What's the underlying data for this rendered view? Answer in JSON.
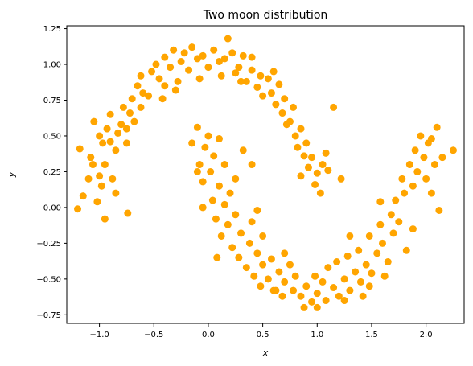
{
  "chart_data": {
    "type": "scatter",
    "title": "Two moon distribution",
    "xlabel": "x",
    "ylabel": "y",
    "xlim": [
      -1.3,
      2.35
    ],
    "ylim": [
      -0.81,
      1.27
    ],
    "xticks": [
      -1.0,
      -0.5,
      0.0,
      0.5,
      1.0,
      1.5,
      2.0
    ],
    "xtick_labels": [
      "−1.0",
      "−0.5",
      "0.0",
      "0.5",
      "1.0",
      "1.5",
      "2.0"
    ],
    "yticks": [
      1.25,
      1.0,
      0.75,
      0.5,
      0.25,
      0.0,
      -0.25,
      -0.5,
      -0.75
    ],
    "ytick_labels": [
      "1.25",
      "1.00",
      "0.75",
      "0.50",
      "0.25",
      "0.00",
      "−0.25",
      "−0.50",
      "−0.75"
    ],
    "grid": false,
    "series": [
      {
        "color": "#FFA500",
        "points": [
          [
            -1.18,
            0.41
          ],
          [
            -1.2,
            -0.01
          ],
          [
            -1.15,
            0.08
          ],
          [
            -1.1,
            0.2
          ],
          [
            -1.08,
            0.35
          ],
          [
            -1.06,
            0.3
          ],
          [
            -1.05,
            0.6
          ],
          [
            -1.02,
            0.04
          ],
          [
            -1.0,
            0.5
          ],
          [
            -0.98,
            0.15
          ],
          [
            -0.97,
            0.45
          ],
          [
            -0.95,
            -0.08
          ],
          [
            -0.93,
            0.55
          ],
          [
            -0.9,
            0.65
          ],
          [
            -0.88,
            0.2
          ],
          [
            -0.85,
            0.4
          ],
          [
            -0.83,
            0.52
          ],
          [
            -0.8,
            0.58
          ],
          [
            -0.78,
            0.7
          ],
          [
            -0.75,
            0.45
          ],
          [
            -0.74,
            -0.04
          ],
          [
            -0.72,
            0.66
          ],
          [
            -0.7,
            0.76
          ],
          [
            -0.68,
            0.6
          ],
          [
            -0.65,
            0.85
          ],
          [
            -0.62,
            0.92
          ],
          [
            -0.6,
            0.8
          ],
          [
            -0.55,
            0.78
          ],
          [
            -0.52,
            0.95
          ],
          [
            -0.48,
            1.0
          ],
          [
            -0.45,
            0.9
          ],
          [
            -0.42,
            0.76
          ],
          [
            -0.4,
            1.05
          ],
          [
            -0.35,
            0.98
          ],
          [
            -0.32,
            1.1
          ],
          [
            -0.28,
            0.88
          ],
          [
            -0.25,
            1.02
          ],
          [
            -0.22,
            1.08
          ],
          [
            -0.18,
            0.96
          ],
          [
            -0.15,
            1.12
          ],
          [
            -0.1,
            1.04
          ],
          [
            -0.08,
            0.9
          ],
          [
            -0.05,
            1.06
          ],
          [
            0.0,
            0.98
          ],
          [
            0.05,
            1.1
          ],
          [
            0.1,
            1.02
          ],
          [
            0.12,
            0.92
          ],
          [
            0.15,
            1.04
          ],
          [
            0.18,
            1.18
          ],
          [
            0.22,
            1.08
          ],
          [
            0.25,
            0.94
          ],
          [
            0.28,
            0.98
          ],
          [
            0.32,
            1.06
          ],
          [
            0.35,
            0.88
          ],
          [
            0.4,
            0.96
          ],
          [
            0.45,
            0.84
          ],
          [
            0.48,
            0.92
          ],
          [
            0.5,
            0.78
          ],
          [
            0.55,
            0.9
          ],
          [
            0.58,
            0.8
          ],
          [
            0.62,
            0.72
          ],
          [
            0.65,
            0.86
          ],
          [
            0.68,
            0.66
          ],
          [
            0.7,
            0.76
          ],
          [
            0.72,
            0.58
          ],
          [
            0.75,
            0.6
          ],
          [
            0.78,
            0.7
          ],
          [
            0.8,
            0.5
          ],
          [
            0.82,
            0.42
          ],
          [
            0.85,
            0.55
          ],
          [
            0.88,
            0.36
          ],
          [
            0.9,
            0.45
          ],
          [
            0.92,
            0.28
          ],
          [
            0.95,
            0.35
          ],
          [
            0.98,
            0.16
          ],
          [
            1.0,
            0.24
          ],
          [
            1.03,
            0.1
          ],
          [
            1.05,
            0.3
          ],
          [
            1.08,
            0.38
          ],
          [
            1.1,
            0.26
          ],
          [
            1.15,
            0.7
          ],
          [
            1.22,
            0.2
          ],
          [
            -0.95,
            0.3
          ],
          [
            -1.0,
            0.22
          ],
          [
            -0.9,
            0.46
          ],
          [
            -0.62,
            0.7
          ],
          [
            -0.4,
            0.85
          ],
          [
            0.3,
            0.88
          ],
          [
            0.6,
            0.95
          ],
          [
            0.85,
            0.22
          ],
          [
            -0.85,
            0.1
          ],
          [
            -0.75,
            0.55
          ],
          [
            -0.3,
            0.82
          ],
          [
            0.4,
            1.05
          ],
          [
            -0.15,
            0.45
          ],
          [
            -0.1,
            0.56
          ],
          [
            -0.08,
            0.3
          ],
          [
            -0.05,
            0.18
          ],
          [
            -0.03,
            0.42
          ],
          [
            0.0,
            0.5
          ],
          [
            0.02,
            0.25
          ],
          [
            0.04,
            0.05
          ],
          [
            0.05,
            0.36
          ],
          [
            0.07,
            -0.08
          ],
          [
            0.1,
            0.15
          ],
          [
            0.12,
            -0.2
          ],
          [
            0.15,
            0.02
          ],
          [
            0.18,
            -0.12
          ],
          [
            0.2,
            0.1
          ],
          [
            0.22,
            -0.28
          ],
          [
            0.25,
            -0.05
          ],
          [
            0.28,
            -0.35
          ],
          [
            0.3,
            -0.18
          ],
          [
            0.32,
            0.4
          ],
          [
            0.35,
            -0.42
          ],
          [
            0.38,
            -0.25
          ],
          [
            0.4,
            -0.1
          ],
          [
            0.42,
            -0.48
          ],
          [
            0.45,
            -0.32
          ],
          [
            0.48,
            -0.55
          ],
          [
            0.5,
            -0.4
          ],
          [
            0.55,
            -0.5
          ],
          [
            0.58,
            -0.36
          ],
          [
            0.6,
            -0.58
          ],
          [
            0.65,
            -0.45
          ],
          [
            0.68,
            -0.62
          ],
          [
            0.7,
            -0.52
          ],
          [
            0.75,
            -0.4
          ],
          [
            0.78,
            -0.58
          ],
          [
            0.8,
            -0.48
          ],
          [
            0.85,
            -0.62
          ],
          [
            0.88,
            -0.7
          ],
          [
            0.9,
            -0.55
          ],
          [
            0.95,
            -0.66
          ],
          [
            0.98,
            -0.48
          ],
          [
            1.0,
            -0.6
          ],
          [
            1.05,
            -0.52
          ],
          [
            1.08,
            -0.65
          ],
          [
            1.1,
            -0.42
          ],
          [
            1.15,
            -0.56
          ],
          [
            1.18,
            -0.38
          ],
          [
            1.2,
            -0.62
          ],
          [
            1.25,
            -0.5
          ],
          [
            1.28,
            -0.34
          ],
          [
            1.3,
            -0.58
          ],
          [
            1.35,
            -0.45
          ],
          [
            1.38,
            -0.3
          ],
          [
            1.4,
            -0.52
          ],
          [
            1.45,
            -0.4
          ],
          [
            1.48,
            -0.2
          ],
          [
            1.5,
            -0.46
          ],
          [
            1.55,
            -0.32
          ],
          [
            1.58,
            -0.12
          ],
          [
            1.6,
            -0.25
          ],
          [
            1.65,
            -0.38
          ],
          [
            1.68,
            -0.05
          ],
          [
            1.7,
            -0.18
          ],
          [
            1.72,
            0.05
          ],
          [
            1.75,
            -0.1
          ],
          [
            1.78,
            0.2
          ],
          [
            1.8,
            0.1
          ],
          [
            1.82,
            -0.3
          ],
          [
            1.85,
            0.3
          ],
          [
            1.88,
            0.15
          ],
          [
            1.9,
            0.4
          ],
          [
            1.92,
            0.25
          ],
          [
            1.95,
            0.5
          ],
          [
            1.98,
            0.35
          ],
          [
            2.0,
            0.2
          ],
          [
            2.02,
            0.45
          ],
          [
            2.05,
            0.1
          ],
          [
            2.08,
            0.3
          ],
          [
            2.1,
            0.56
          ],
          [
            2.12,
            -0.02
          ],
          [
            2.15,
            0.35
          ],
          [
            2.25,
            0.4
          ],
          [
            1.58,
            0.04
          ],
          [
            1.48,
            -0.55
          ],
          [
            1.25,
            -0.65
          ],
          [
            0.62,
            -0.58
          ],
          [
            0.4,
            0.3
          ],
          [
            0.25,
            0.2
          ],
          [
            -0.1,
            0.25
          ],
          [
            -0.05,
            0.0
          ],
          [
            0.1,
            0.48
          ],
          [
            0.15,
            0.3
          ],
          [
            0.5,
            -0.2
          ],
          [
            0.7,
            -0.32
          ],
          [
            1.3,
            -0.2
          ],
          [
            1.62,
            -0.48
          ],
          [
            1.88,
            -0.15
          ],
          [
            2.05,
            0.48
          ],
          [
            1.0,
            -0.7
          ],
          [
            0.45,
            -0.02
          ],
          [
            0.08,
            -0.35
          ],
          [
            1.42,
            -0.62
          ]
        ]
      }
    ]
  }
}
